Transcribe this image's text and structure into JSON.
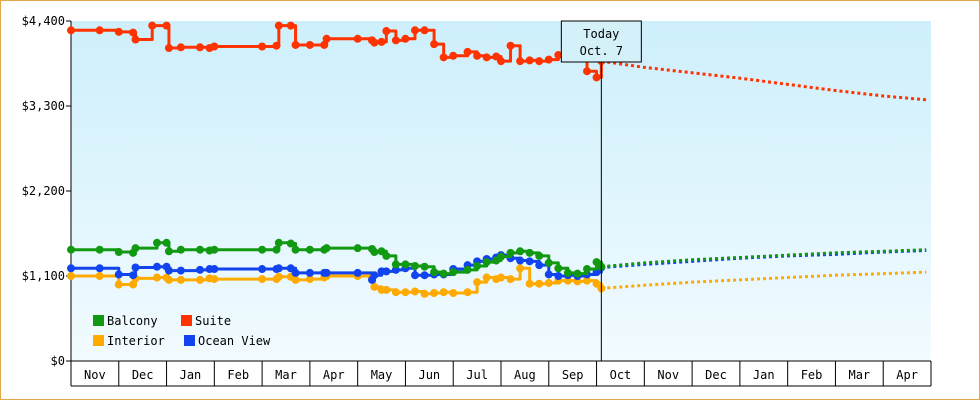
{
  "chart_data": {
    "type": "line",
    "title": "",
    "xlabel": "",
    "ylabel": "",
    "ylim": [
      0,
      4400
    ],
    "yticks": [
      0,
      1100,
      2200,
      3300,
      4400
    ],
    "ytick_labels": [
      "$0",
      "$1,100",
      "$2,200",
      "$3,300",
      "$4,400"
    ],
    "x_months": [
      "Nov",
      "Dec",
      "Jan",
      "Feb",
      "Mar",
      "Apr",
      "May",
      "Jun",
      "Jul",
      "Aug",
      "Sep",
      "Oct",
      "Nov",
      "Dec",
      "Jan",
      "Feb",
      "Mar",
      "Apr"
    ],
    "grid": false,
    "legend_position": "bottom-left",
    "today_marker": {
      "line1": "Today",
      "line2": "Oct. 7",
      "x": 11.1
    },
    "series": [
      {
        "name": "Balcony",
        "color": "#119911",
        "actual": [
          [
            0.0,
            1440
          ],
          [
            0.6,
            1440
          ],
          [
            1.0,
            1410
          ],
          [
            1.3,
            1400
          ],
          [
            1.35,
            1460
          ],
          [
            1.8,
            1530
          ],
          [
            2.0,
            1530
          ],
          [
            2.05,
            1420
          ],
          [
            2.3,
            1440
          ],
          [
            2.7,
            1440
          ],
          [
            2.9,
            1430
          ],
          [
            3.0,
            1440
          ],
          [
            4.0,
            1440
          ],
          [
            4.3,
            1440
          ],
          [
            4.35,
            1530
          ],
          [
            4.6,
            1520
          ],
          [
            4.7,
            1440
          ],
          [
            5.0,
            1440
          ],
          [
            5.3,
            1440
          ],
          [
            5.35,
            1460
          ],
          [
            6.0,
            1460
          ],
          [
            6.3,
            1450
          ],
          [
            6.35,
            1410
          ],
          [
            6.5,
            1420
          ],
          [
            6.6,
            1360
          ],
          [
            6.8,
            1250
          ],
          [
            7.0,
            1250
          ],
          [
            7.2,
            1230
          ],
          [
            7.4,
            1220
          ],
          [
            7.6,
            1150
          ],
          [
            7.8,
            1130
          ],
          [
            8.0,
            1150
          ],
          [
            8.3,
            1180
          ],
          [
            8.5,
            1230
          ],
          [
            8.7,
            1280
          ],
          [
            8.9,
            1300
          ],
          [
            9.0,
            1350
          ],
          [
            9.2,
            1400
          ],
          [
            9.4,
            1420
          ],
          [
            9.6,
            1400
          ],
          [
            9.8,
            1360
          ],
          [
            10.0,
            1270
          ],
          [
            10.2,
            1200
          ],
          [
            10.4,
            1140
          ],
          [
            10.6,
            1130
          ],
          [
            10.8,
            1190
          ],
          [
            11.0,
            1280
          ],
          [
            11.1,
            1220
          ]
        ],
        "forecast": [
          [
            11.1,
            1220
          ],
          [
            12.0,
            1270
          ],
          [
            13.0,
            1310
          ],
          [
            14.0,
            1340
          ],
          [
            15.0,
            1370
          ],
          [
            16.0,
            1400
          ],
          [
            17.0,
            1420
          ],
          [
            17.9,
            1440
          ]
        ]
      },
      {
        "name": "Suite",
        "color": "#ff3300",
        "actual": [
          [
            0.0,
            4280
          ],
          [
            0.6,
            4280
          ],
          [
            1.0,
            4260
          ],
          [
            1.3,
            4250
          ],
          [
            1.35,
            4160
          ],
          [
            1.7,
            4340
          ],
          [
            2.0,
            4340
          ],
          [
            2.05,
            4050
          ],
          [
            2.3,
            4060
          ],
          [
            2.7,
            4060
          ],
          [
            2.9,
            4050
          ],
          [
            3.0,
            4070
          ],
          [
            4.0,
            4070
          ],
          [
            4.3,
            4080
          ],
          [
            4.35,
            4340
          ],
          [
            4.6,
            4340
          ],
          [
            4.7,
            4090
          ],
          [
            5.0,
            4090
          ],
          [
            5.3,
            4090
          ],
          [
            5.35,
            4170
          ],
          [
            6.0,
            4170
          ],
          [
            6.3,
            4150
          ],
          [
            6.35,
            4120
          ],
          [
            6.5,
            4130
          ],
          [
            6.6,
            4270
          ],
          [
            6.8,
            4150
          ],
          [
            7.0,
            4170
          ],
          [
            7.2,
            4280
          ],
          [
            7.4,
            4280
          ],
          [
            7.6,
            4100
          ],
          [
            7.8,
            3930
          ],
          [
            8.0,
            3950
          ],
          [
            8.3,
            4000
          ],
          [
            8.5,
            3950
          ],
          [
            8.7,
            3930
          ],
          [
            8.9,
            3940
          ],
          [
            9.0,
            3880
          ],
          [
            9.2,
            4080
          ],
          [
            9.4,
            3880
          ],
          [
            9.6,
            3890
          ],
          [
            9.8,
            3880
          ],
          [
            10.0,
            3900
          ],
          [
            10.2,
            3960
          ],
          [
            10.4,
            3980
          ],
          [
            10.6,
            3990
          ],
          [
            10.8,
            3750
          ],
          [
            11.0,
            3670
          ],
          [
            11.1,
            3880
          ]
        ],
        "forecast": [
          [
            11.1,
            3880
          ],
          [
            12.0,
            3800
          ],
          [
            13.0,
            3730
          ],
          [
            14.0,
            3660
          ],
          [
            15.0,
            3580
          ],
          [
            16.0,
            3500
          ],
          [
            17.0,
            3430
          ],
          [
            17.9,
            3380
          ]
        ]
      },
      {
        "name": "Interior",
        "color": "#ffaa00",
        "actual": [
          [
            0.0,
            1100
          ],
          [
            0.6,
            1100
          ],
          [
            1.0,
            990
          ],
          [
            1.3,
            990
          ],
          [
            1.35,
            1070
          ],
          [
            1.8,
            1080
          ],
          [
            2.0,
            1080
          ],
          [
            2.05,
            1050
          ],
          [
            2.3,
            1050
          ],
          [
            2.7,
            1050
          ],
          [
            2.9,
            1070
          ],
          [
            3.0,
            1060
          ],
          [
            4.0,
            1060
          ],
          [
            4.3,
            1060
          ],
          [
            4.35,
            1090
          ],
          [
            4.6,
            1090
          ],
          [
            4.7,
            1050
          ],
          [
            5.0,
            1060
          ],
          [
            5.3,
            1080
          ],
          [
            5.35,
            1100
          ],
          [
            6.0,
            1100
          ],
          [
            6.3,
            1090
          ],
          [
            6.35,
            960
          ],
          [
            6.5,
            920
          ],
          [
            6.6,
            920
          ],
          [
            6.8,
            890
          ],
          [
            7.0,
            890
          ],
          [
            7.2,
            900
          ],
          [
            7.4,
            870
          ],
          [
            7.6,
            880
          ],
          [
            7.8,
            890
          ],
          [
            8.0,
            880
          ],
          [
            8.3,
            890
          ],
          [
            8.5,
            1020
          ],
          [
            8.7,
            1080
          ],
          [
            8.9,
            1060
          ],
          [
            9.0,
            1080
          ],
          [
            9.2,
            1060
          ],
          [
            9.4,
            1200
          ],
          [
            9.6,
            1000
          ],
          [
            9.8,
            1000
          ],
          [
            10.0,
            1010
          ],
          [
            10.2,
            1040
          ],
          [
            10.4,
            1040
          ],
          [
            10.6,
            1030
          ],
          [
            10.8,
            1040
          ],
          [
            11.0,
            1000
          ],
          [
            11.1,
            940
          ]
        ],
        "forecast": [
          [
            11.1,
            940
          ],
          [
            12.0,
            980
          ],
          [
            13.0,
            1020
          ],
          [
            14.0,
            1050
          ],
          [
            15.0,
            1080
          ],
          [
            16.0,
            1110
          ],
          [
            17.0,
            1130
          ],
          [
            17.9,
            1150
          ]
        ]
      },
      {
        "name": "Ocean View",
        "color": "#1144ee",
        "actual": [
          [
            0.0,
            1200
          ],
          [
            0.6,
            1200
          ],
          [
            1.0,
            1120
          ],
          [
            1.3,
            1110
          ],
          [
            1.35,
            1210
          ],
          [
            1.8,
            1220
          ],
          [
            2.0,
            1220
          ],
          [
            2.05,
            1170
          ],
          [
            2.3,
            1170
          ],
          [
            2.7,
            1180
          ],
          [
            2.9,
            1190
          ],
          [
            3.0,
            1190
          ],
          [
            4.0,
            1190
          ],
          [
            4.3,
            1190
          ],
          [
            4.35,
            1200
          ],
          [
            4.6,
            1200
          ],
          [
            4.7,
            1140
          ],
          [
            5.0,
            1140
          ],
          [
            5.3,
            1140
          ],
          [
            5.35,
            1140
          ],
          [
            6.0,
            1140
          ],
          [
            6.3,
            1050
          ],
          [
            6.35,
            1110
          ],
          [
            6.5,
            1160
          ],
          [
            6.6,
            1160
          ],
          [
            6.8,
            1180
          ],
          [
            7.0,
            1200
          ],
          [
            7.2,
            1110
          ],
          [
            7.4,
            1110
          ],
          [
            7.6,
            1120
          ],
          [
            7.8,
            1120
          ],
          [
            8.0,
            1190
          ],
          [
            8.3,
            1240
          ],
          [
            8.5,
            1290
          ],
          [
            8.7,
            1320
          ],
          [
            8.9,
            1340
          ],
          [
            9.0,
            1370
          ],
          [
            9.2,
            1330
          ],
          [
            9.4,
            1300
          ],
          [
            9.6,
            1290
          ],
          [
            9.8,
            1240
          ],
          [
            10.0,
            1120
          ],
          [
            10.2,
            1100
          ],
          [
            10.4,
            1110
          ],
          [
            10.6,
            1100
          ],
          [
            10.8,
            1120
          ],
          [
            11.0,
            1150
          ],
          [
            11.1,
            1210
          ]
        ],
        "forecast": [
          [
            11.1,
            1210
          ],
          [
            12.0,
            1250
          ],
          [
            13.0,
            1290
          ],
          [
            14.0,
            1330
          ],
          [
            15.0,
            1360
          ],
          [
            16.0,
            1380
          ],
          [
            17.0,
            1410
          ],
          [
            17.9,
            1430
          ]
        ]
      }
    ]
  }
}
